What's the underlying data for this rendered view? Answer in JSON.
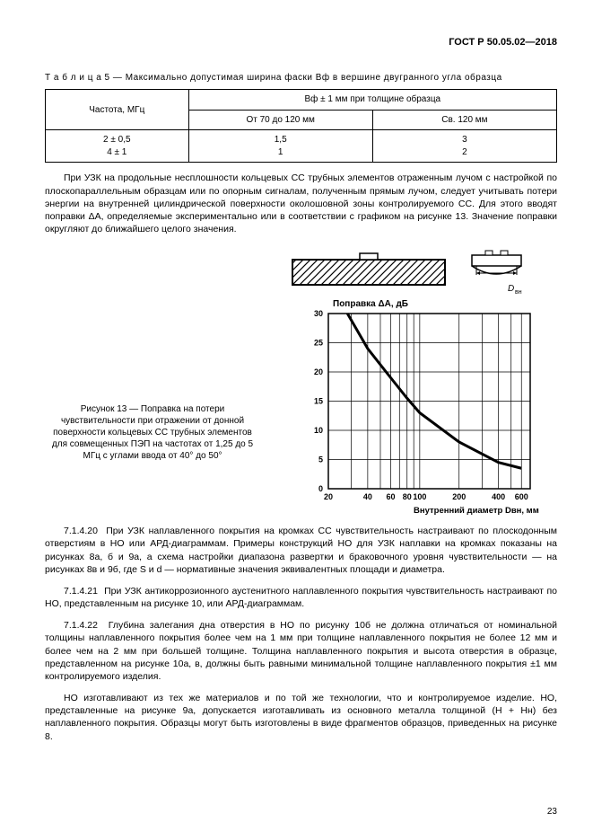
{
  "header": "ГОСТ Р 50.05.02—2018",
  "table5": {
    "caption_prefix": "Т а б л и ц а  5 — ",
    "caption": "Максимально допустимая ширина фаски Bф в вершине двугранного угла образца",
    "col_freq": "Частота, МГц",
    "col_b_header": "Bф ± 1 мм при толщине образца",
    "col_b1": "От 70 до 120 мм",
    "col_b2": "Св. 120 мм",
    "rows": [
      {
        "f": "2 ± 0,5",
        "a": "1,5",
        "b": "3"
      },
      {
        "f": "4 ± 1",
        "a": "1",
        "b": "2"
      }
    ]
  },
  "para1": "При УЗК на продольные несплошности кольцевых СС трубных элементов отраженным лучом с настройкой по плоскопараллельным образцам или по опорным сигналам, полученным прямым лучом, следует учитывать потери энергии на внутренней цилиндрической поверхности околошовной зоны контролируемого СС. Для этого вводят поправки ΔA, определяемые экспериментально или в соответствии с графиком на рисунке 13. Значение поправки округляют до ближайшего целого значения.",
  "figure13": {
    "caption": "Рисунок 13 — Поправка на потери чувствительности при отражении от донной поверхности кольцевых СС трубных элементов для совмещенных ПЭП на частотах от 1,25 до 5 МГц с углами ввода от 40° до 50°",
    "ylabel": "Поправка ΔA, дБ",
    "xlabel": "Внутренний диаметр Dвн, мм",
    "xticks": [
      20,
      40,
      60,
      80,
      100,
      200,
      400,
      600
    ],
    "yticks": [
      0,
      5,
      10,
      15,
      20,
      25,
      30
    ],
    "ylim": [
      0,
      30
    ],
    "grid_color": "#000000",
    "background": "#ffffff",
    "line_color": "#000000",
    "line_width": 2,
    "curve_points": [
      [
        28,
        30
      ],
      [
        40,
        24
      ],
      [
        60,
        19
      ],
      [
        80,
        15.5
      ],
      [
        100,
        13
      ],
      [
        200,
        8
      ],
      [
        400,
        4.5
      ],
      [
        600,
        3.5
      ]
    ],
    "dvn_label": "Dвн"
  },
  "para2_num": "7.1.4.20",
  "para2": "При УЗК наплавленного покрытия на кромках СС чувствительность настраивают по плоскодонным отверстиям в НО или АРД-диаграммам. Примеры конструкций НО для УЗК наплавки на кромках показаны на рисунках 8а, б и 9а, а схема настройки диапазона развертки и браковочного уровня чувствительности — на рисунках 8в и 9б, где S и d — нормативные значения эквивалентных площади и диаметра.",
  "para3_num": "7.1.4.21",
  "para3": "При УЗК антикоррозионного аустенитного наплавленного покрытия чувствительность настраивают по НО, представленным на рисунке 10, или АРД-диаграммам.",
  "para4_num": "7.1.4.22",
  "para4": "Глубина залегания дна отверстия в НО по рисунку 10б не должна отличаться от номинальной толщины наплавленного покрытия более чем на 1 мм при толщине наплавленного покрытия не более 12 мм и более чем на 2 мм при большей толщине. Толщина наплавленного покрытия и высота отверстия в образце, представленном на рисунке 10а, в, должны быть равными минимальной толщине наплавленного покрытия ±1 мм контролируемого изделия.",
  "para5": "НО изготавливают из тех же материалов и по той же технологии, что и контролируемое изделие. НО, представленные на рисунке 9а, допускается изготавливать из основного металла толщиной (H + Hн) без наплавленного покрытия. Образцы могут быть изготовлены в виде фрагментов образцов, приведенных на рисунке 8.",
  "pagenum": "23"
}
